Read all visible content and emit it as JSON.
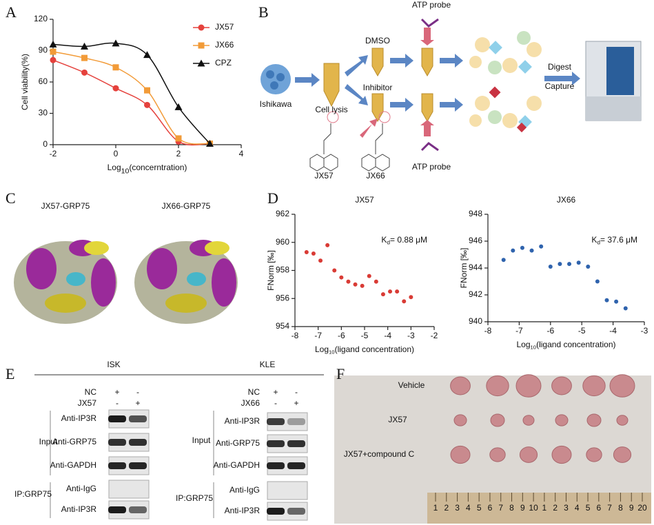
{
  "panel_labels": [
    "A",
    "B",
    "C",
    "D",
    "E",
    "F"
  ],
  "chart_data": [
    {
      "type": "line",
      "x": [
        -2,
        -1,
        0,
        1,
        2,
        3
      ],
      "series": [
        {
          "name": "JX57",
          "color": "#e5413c",
          "marker": "circle",
          "values": [
            81,
            69,
            54,
            38,
            3,
            1
          ]
        },
        {
          "name": "JX66",
          "color": "#f29b38",
          "marker": "square",
          "values": [
            89,
            83,
            74,
            52,
            6,
            1
          ]
        },
        {
          "name": "CPZ",
          "color": "#111111",
          "marker": "triangle",
          "values": [
            96,
            94,
            97,
            86,
            36,
            1
          ]
        }
      ],
      "xlim": [
        -2,
        4
      ],
      "xticks": [
        -2,
        0,
        2,
        4
      ],
      "ylim": [
        0,
        120
      ],
      "yticks": [
        0,
        30,
        60,
        90,
        120
      ],
      "x_label": {
        "text": "Log",
        "sub": "10",
        "rest": "(concerntration)"
      },
      "y_label": "Cell viability(%)",
      "legend": "upper right"
    },
    {
      "type": "scatter",
      "title": "JX57",
      "x": [
        -7.5,
        -7.2,
        -6.9,
        -6.6,
        -6.3,
        -6.0,
        -5.7,
        -5.4,
        -5.1,
        -4.8,
        -4.5,
        -4.2,
        -3.9,
        -3.6,
        -3.3,
        -3.0
      ],
      "series": [
        {
          "color": "#d93b35",
          "marker": "circle",
          "values": [
            959.3,
            959.2,
            958.7,
            959.8,
            958.0,
            957.5,
            957.2,
            957.0,
            956.9,
            957.6,
            957.2,
            956.3,
            956.5,
            956.5,
            955.8,
            956.1
          ]
        }
      ],
      "xlim": [
        -8,
        -2
      ],
      "xticks": [
        -8,
        -7,
        -6,
        -5,
        -4,
        -3,
        -2
      ],
      "ylim": [
        954,
        962
      ],
      "yticks": [
        954,
        956,
        958,
        960,
        962
      ],
      "x_label": {
        "text": "Log",
        "sub": "10",
        "rest": "(ligand concentration)"
      },
      "y_label": "FNorm [‰]",
      "annotation": {
        "text": "K",
        "sub": "d",
        "rest": "= 0.88 μM"
      }
    },
    {
      "type": "scatter",
      "title": "JX66",
      "x": [
        -7.5,
        -7.2,
        -6.9,
        -6.6,
        -6.3,
        -6.0,
        -5.7,
        -5.4,
        -5.1,
        -4.8,
        -4.5,
        -4.2,
        -3.9,
        -3.6
      ],
      "series": [
        {
          "color": "#2f63ad",
          "marker": "circle",
          "values": [
            944.6,
            945.3,
            945.5,
            945.3,
            945.6,
            944.1,
            944.3,
            944.3,
            944.4,
            944.1,
            943.0,
            941.6,
            941.5,
            941.0
          ]
        }
      ],
      "xlim": [
        -8,
        -3
      ],
      "xticks": [
        -8,
        -7,
        -6,
        -5,
        -4,
        -3
      ],
      "ylim": [
        940,
        948
      ],
      "yticks": [
        940,
        942,
        944,
        946,
        948
      ],
      "x_label": {
        "text": "Log",
        "sub": "10",
        "rest": "(ligand concentration)"
      },
      "y_label": "FNorm [‰]",
      "annotation": {
        "text": "K",
        "sub": "d",
        "rest": "= 37.6 μM"
      }
    }
  ],
  "diagram_b": {
    "atp_top": "ATP probe",
    "dmso": "DMSO",
    "ishikawa": "Ishikawa",
    "cell_lysis": "Cell lysis",
    "inhibitor": "Inhibitor",
    "atp_bottom": "ATP probe",
    "digest": "Digest",
    "capture": "Capture",
    "jx57": "JX57",
    "jx66": "JX66"
  },
  "structures_c": {
    "labels": [
      "JX57-GRP75",
      "JX66-GRP75"
    ]
  },
  "blots_e": [
    {
      "cell": "ISK",
      "conditions": [
        [
          "NC",
          "+",
          "-"
        ],
        [
          "JX57",
          "-",
          "+"
        ]
      ],
      "rows": [
        "Anti-IP3R",
        "Anti-GRP75",
        "Anti-GAPDH",
        "Anti-IgG",
        "Anti-IP3R"
      ],
      "groups": [
        "Input",
        "IP:GRP75"
      ]
    },
    {
      "cell": "KLE",
      "conditions": [
        [
          "NC",
          "+",
          "-"
        ],
        [
          "JX66",
          "-",
          "+"
        ]
      ],
      "rows": [
        "Anti-IP3R",
        "Anti-GRP75",
        "Anti-GAPDH",
        "Anti-IgG",
        "Anti-IP3R"
      ],
      "groups": [
        "Input",
        "IP:GRP75"
      ]
    }
  ],
  "photo_f": {
    "rows": [
      "Vehicle",
      "JX57",
      "JX57+compound C"
    ],
    "ruler": [
      "1",
      "2",
      "3",
      "4",
      "5",
      "6",
      "7",
      "8",
      "9",
      "10",
      "1",
      "2",
      "3",
      "4",
      "5",
      "6",
      "7",
      "8",
      "9",
      "20"
    ]
  }
}
